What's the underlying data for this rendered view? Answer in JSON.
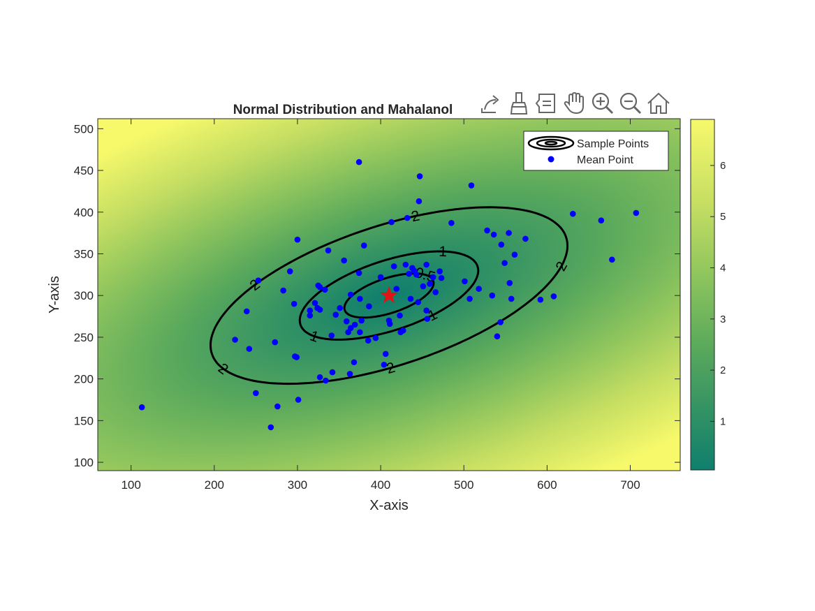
{
  "figure": {
    "toolbar": [
      {
        "name": "export-icon"
      },
      {
        "name": "brush-icon"
      },
      {
        "name": "datatip-icon"
      },
      {
        "name": "pan-hand-icon"
      },
      {
        "name": "zoom-in-icon"
      },
      {
        "name": "zoom-out-icon"
      },
      {
        "name": "home-icon"
      }
    ],
    "colors": {
      "colormap_low": "#0f7f6d",
      "colormap_mid": "#72b85a",
      "colormap_high": "#f7f96b",
      "scatter": "#0000ff",
      "mean_marker": "#e01414",
      "contour": "#000000"
    }
  },
  "chart_data": {
    "type": "scatter",
    "title": "Normal Distribution and Mahalanol",
    "xlabel": "X-axis",
    "ylabel": "Y-axis",
    "xlim": [
      60,
      760
    ],
    "ylim": [
      90,
      512
    ],
    "xticks": [
      100,
      200,
      300,
      400,
      500,
      600,
      700
    ],
    "yticks": [
      100,
      150,
      200,
      250,
      300,
      350,
      400,
      450,
      500
    ],
    "grid": false,
    "legend": {
      "placement": "top-right",
      "entries": [
        "Sample Points",
        "Mean Point"
      ]
    },
    "colorbar": {
      "ticks": [
        1,
        2,
        3,
        4,
        5,
        6
      ],
      "range": [
        0.05,
        6.9
      ]
    },
    "background": {
      "kind": "heatmap",
      "quantity": "mahalanobis distance",
      "center": [
        410,
        300
      ],
      "cov": [
        [
          11500,
          3200
        ],
        [
          3200,
          2800
        ]
      ]
    },
    "contours": [
      {
        "level": 0.5,
        "labels": [
          "0.5"
        ]
      },
      {
        "level": 1,
        "labels": [
          "1",
          "1",
          "1"
        ]
      },
      {
        "level": 2,
        "labels": [
          "2",
          "2",
          "2",
          "2",
          "2"
        ]
      }
    ],
    "mean_point": {
      "x": 410,
      "y": 300
    },
    "points": [
      [
        113,
        166
      ],
      [
        268,
        142
      ],
      [
        276,
        167
      ],
      [
        250,
        183
      ],
      [
        301,
        175
      ],
      [
        225,
        247
      ],
      [
        242,
        236
      ],
      [
        273,
        244
      ],
      [
        239,
        281
      ],
      [
        253,
        318
      ],
      [
        283,
        306
      ],
      [
        291,
        329
      ],
      [
        296,
        290
      ],
      [
        297,
        227
      ],
      [
        299,
        226
      ],
      [
        300,
        367
      ],
      [
        315,
        282
      ],
      [
        315,
        276
      ],
      [
        321,
        291
      ],
      [
        324,
        285
      ],
      [
        325,
        312
      ],
      [
        327,
        283
      ],
      [
        327,
        310
      ],
      [
        327,
        202
      ],
      [
        333,
        307
      ],
      [
        334,
        198
      ],
      [
        337,
        354
      ],
      [
        341,
        252
      ],
      [
        342,
        208
      ],
      [
        346,
        277
      ],
      [
        351,
        285
      ],
      [
        356,
        342
      ],
      [
        359,
        269
      ],
      [
        361,
        256
      ],
      [
        363,
        206
      ],
      [
        364,
        301
      ],
      [
        364,
        261
      ],
      [
        368,
        220
      ],
      [
        369,
        265
      ],
      [
        374,
        460
      ],
      [
        374,
        327
      ],
      [
        375,
        296
      ],
      [
        375,
        256
      ],
      [
        377,
        270
      ],
      [
        380,
        360
      ],
      [
        385,
        246
      ],
      [
        386,
        287
      ],
      [
        394,
        249
      ],
      [
        400,
        322
      ],
      [
        404,
        217
      ],
      [
        406,
        230
      ],
      [
        410,
        270
      ],
      [
        411,
        266
      ],
      [
        413,
        388
      ],
      [
        416,
        335
      ],
      [
        419,
        308
      ],
      [
        423,
        276
      ],
      [
        424,
        256
      ],
      [
        427,
        258
      ],
      [
        430,
        337
      ],
      [
        432,
        393
      ],
      [
        434,
        326
      ],
      [
        436,
        296
      ],
      [
        438,
        333
      ],
      [
        440,
        330
      ],
      [
        443,
        325
      ],
      [
        445,
        292
      ],
      [
        446,
        413
      ],
      [
        447,
        443
      ],
      [
        451,
        311
      ],
      [
        455,
        337
      ],
      [
        455,
        282
      ],
      [
        456,
        272
      ],
      [
        459,
        314
      ],
      [
        463,
        322
      ],
      [
        466,
        304
      ],
      [
        471,
        329
      ],
      [
        473,
        321
      ],
      [
        485,
        387
      ],
      [
        501,
        317
      ],
      [
        507,
        296
      ],
      [
        509,
        432
      ],
      [
        518,
        308
      ],
      [
        528,
        378
      ],
      [
        534,
        300
      ],
      [
        536,
        373
      ],
      [
        540,
        251
      ],
      [
        544,
        268
      ],
      [
        545,
        361
      ],
      [
        549,
        339
      ],
      [
        554,
        375
      ],
      [
        555,
        315
      ],
      [
        557,
        296
      ],
      [
        561,
        349
      ],
      [
        574,
        368
      ],
      [
        592,
        295
      ],
      [
        608,
        299
      ],
      [
        631,
        398
      ],
      [
        665,
        390
      ],
      [
        678,
        343
      ],
      [
        707,
        399
      ]
    ]
  }
}
